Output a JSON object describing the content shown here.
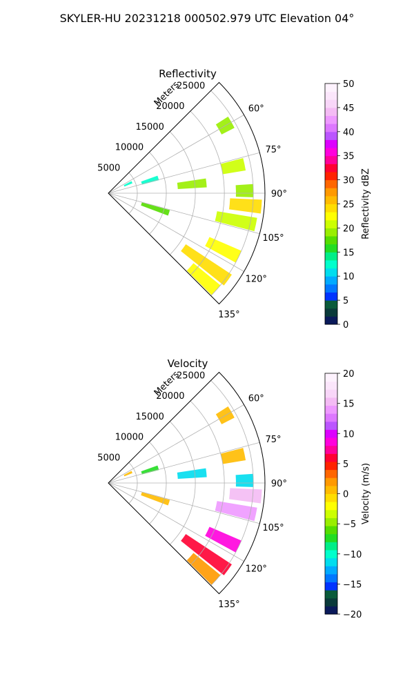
{
  "figure": {
    "suptitle": "SKYLER-HU  20231218  000502.979 UTC Elevation 04°"
  },
  "chart_data": [
    {
      "type": "heatmap",
      "projection": "polar-sector",
      "title": "Reflectivity",
      "radial_label": "Meters",
      "radial_ticks": [
        "5000",
        "10000",
        "15000",
        "20000",
        "25000"
      ],
      "radial_tick_values": [
        5000,
        10000,
        15000,
        20000,
        25000
      ],
      "rlim": [
        0,
        27000
      ],
      "angle_ticks": [
        "60°",
        "75°",
        "90°",
        "105°",
        "120°",
        "135°"
      ],
      "angle_tick_values": [
        60,
        75,
        90,
        105,
        120,
        135
      ],
      "theta_range_deg": [
        45,
        135
      ],
      "grid": true,
      "colorbar": {
        "label": "Reflectivity dBZ",
        "range": [
          0,
          50
        ],
        "ticks": [
          "0",
          "5",
          "10",
          "15",
          "20",
          "25",
          "30",
          "35",
          "40",
          "45",
          "50"
        ],
        "tick_values": [
          0,
          5,
          10,
          15,
          20,
          25,
          30,
          35,
          40,
          45,
          50
        ],
        "colors": [
          "#0a1a5a",
          "#0a3a3a",
          "#0a5a3a",
          "#0033ff",
          "#0077ff",
          "#00aaff",
          "#00ddee",
          "#00ffcc",
          "#00ee88",
          "#22dd22",
          "#55dd00",
          "#99ee00",
          "#ccff00",
          "#ffff00",
          "#ffdd00",
          "#ffbb00",
          "#ff9900",
          "#ff6600",
          "#ff2200",
          "#ff0033",
          "#ff0099",
          "#ff00dd",
          "#dd00ff",
          "#bb55ff",
          "#dd77ff",
          "#ee99ff",
          "#f4bbf4",
          "#f8d6f8",
          "#fbe6fb",
          "#fdf2fd"
        ]
      },
      "echo_regions": [
        {
          "az": 60,
          "r0": 22000,
          "r1": 24500,
          "v": 19
        },
        {
          "az": 65,
          "r0": 3000,
          "r1": 4500,
          "v": 13
        },
        {
          "az": 73,
          "r0": 6000,
          "r1": 9000,
          "v": 13
        },
        {
          "az": 78,
          "r0": 20000,
          "r1": 24000,
          "v": 20
        },
        {
          "az": 84,
          "r0": 12000,
          "r1": 17000,
          "v": 19
        },
        {
          "az": 89,
          "r0": 22000,
          "r1": 25000,
          "v": 19
        },
        {
          "az": 95,
          "r0": 21000,
          "r1": 26500,
          "v": 24
        },
        {
          "az": 102,
          "r0": 19000,
          "r1": 26000,
          "v": 21
        },
        {
          "az": 108,
          "r0": 6000,
          "r1": 11000,
          "v": 18
        },
        {
          "az": 116,
          "r0": 19000,
          "r1": 25000,
          "v": 22
        },
        {
          "az": 126,
          "r0": 16000,
          "r1": 25500,
          "v": 24
        },
        {
          "az": 132,
          "r0": 19000,
          "r1": 25000,
          "v": 22
        }
      ]
    },
    {
      "type": "heatmap",
      "projection": "polar-sector",
      "title": "Velocity",
      "radial_label": "Meters",
      "radial_ticks": [
        "5000",
        "10000",
        "15000",
        "20000",
        "25000"
      ],
      "radial_tick_values": [
        5000,
        10000,
        15000,
        20000,
        25000
      ],
      "rlim": [
        0,
        27000
      ],
      "angle_ticks": [
        "60°",
        "75°",
        "90°",
        "105°",
        "120°",
        "135°"
      ],
      "angle_tick_values": [
        60,
        75,
        90,
        105,
        120,
        135
      ],
      "theta_range_deg": [
        45,
        135
      ],
      "grid": true,
      "colorbar": {
        "label": "Velocity (m/s)",
        "range": [
          -20,
          20
        ],
        "ticks": [
          "−20",
          "−15",
          "−10",
          "−5",
          "0",
          "5",
          "10",
          "15",
          "20"
        ],
        "tick_values": [
          -20,
          -15,
          -10,
          -5,
          0,
          5,
          10,
          15,
          20
        ],
        "colors": [
          "#0a1a5a",
          "#0a3a3a",
          "#0a5a3a",
          "#0033ff",
          "#0077ff",
          "#00aaff",
          "#00ddee",
          "#00ffcc",
          "#00ee88",
          "#22dd22",
          "#55dd00",
          "#99ee00",
          "#ccff00",
          "#ffff00",
          "#ffdd00",
          "#ffbb00",
          "#ff9900",
          "#ff6600",
          "#ff2200",
          "#ff0033",
          "#ff0099",
          "#ff00dd",
          "#dd00ff",
          "#bb55ff",
          "#dd77ff",
          "#ee99ff",
          "#f4bbf4",
          "#f8d6f8",
          "#fbe6fb",
          "#fdf2fd"
        ]
      },
      "echo_regions": [
        {
          "az": 60,
          "r0": 22000,
          "r1": 24500,
          "v": 0
        },
        {
          "az": 65,
          "r0": 3000,
          "r1": 4500,
          "v": 1
        },
        {
          "az": 73,
          "r0": 6000,
          "r1": 9000,
          "v": -8
        },
        {
          "az": 78,
          "r0": 20000,
          "r1": 24000,
          "v": 1
        },
        {
          "az": 84,
          "r0": 12000,
          "r1": 17000,
          "v": -11
        },
        {
          "az": 89,
          "r0": 22000,
          "r1": 25000,
          "v": -11
        },
        {
          "az": 95,
          "r0": 21000,
          "r1": 26500,
          "v": 15
        },
        {
          "az": 102,
          "r0": 19000,
          "r1": 26000,
          "v": 14
        },
        {
          "az": 108,
          "r0": 6000,
          "r1": 11000,
          "v": 1
        },
        {
          "az": 116,
          "r0": 19000,
          "r1": 25000,
          "v": 9
        },
        {
          "az": 126,
          "r0": 16000,
          "r1": 25500,
          "v": 6
        },
        {
          "az": 132,
          "r0": 19000,
          "r1": 25000,
          "v": 2
        }
      ]
    }
  ]
}
